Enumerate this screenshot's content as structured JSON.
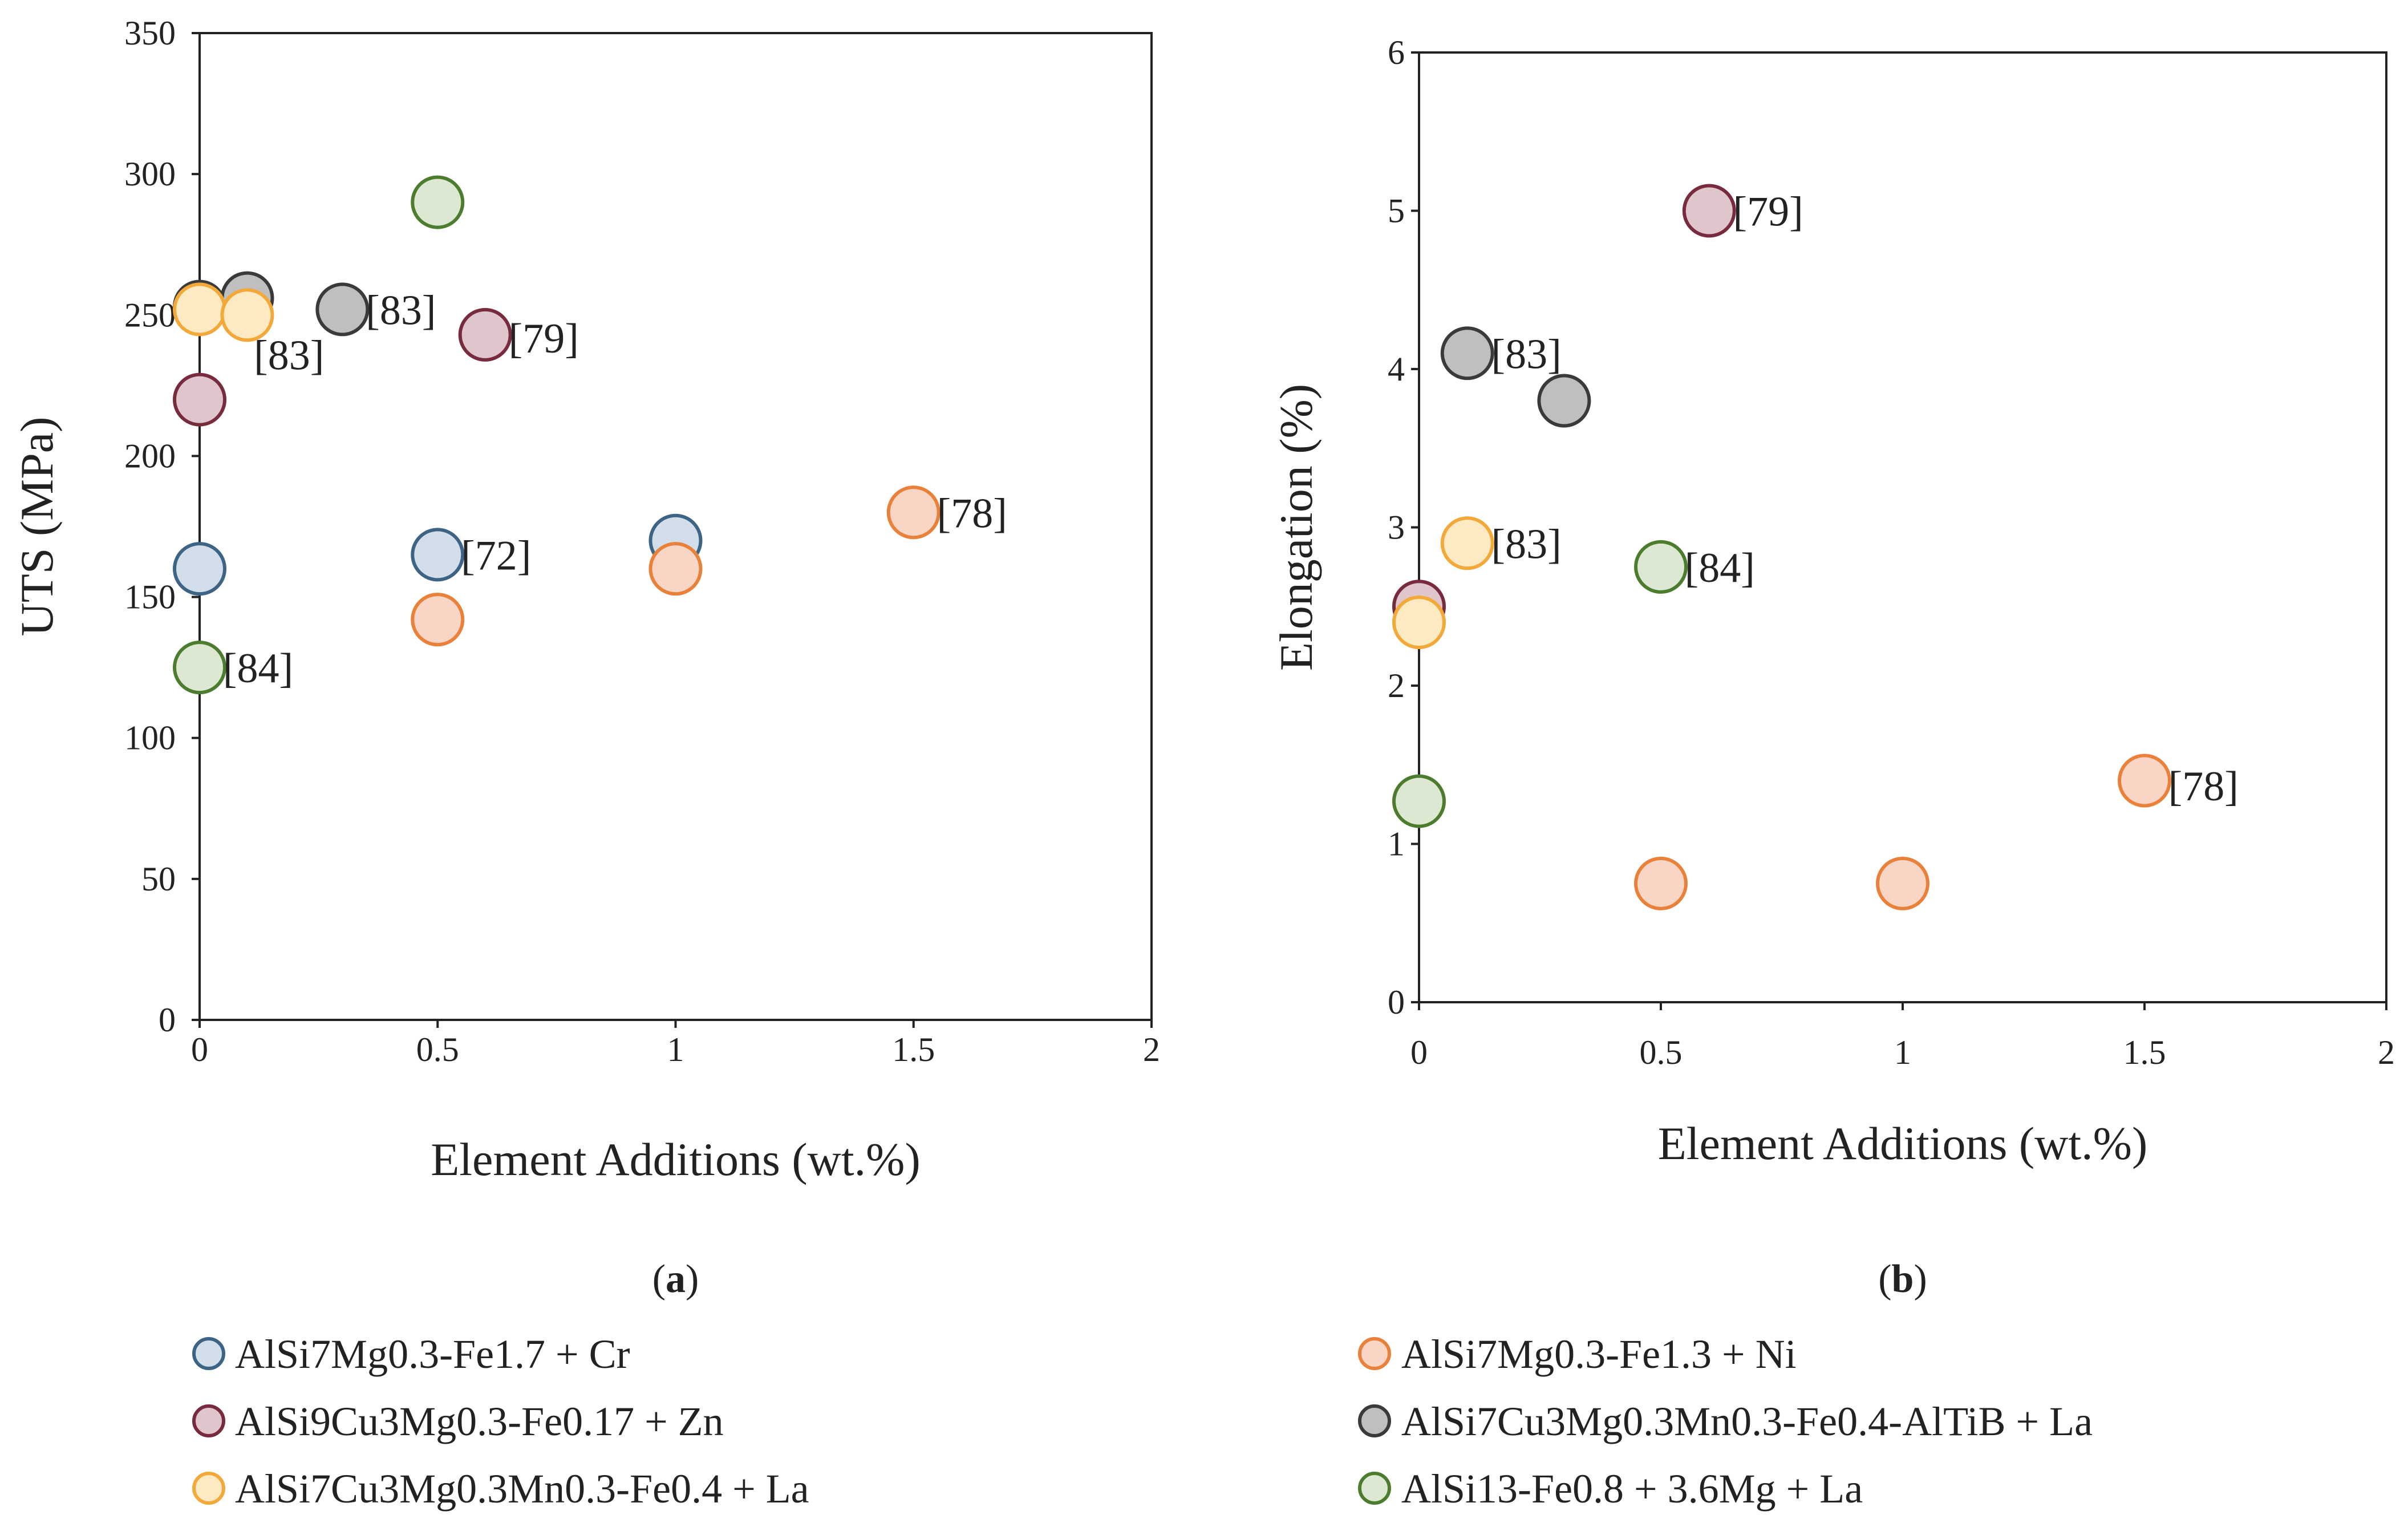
{
  "series_styles": [
    {
      "name": "AlSi7Mg0.3-Fe1.7 + Cr",
      "fill": "#d2dee9",
      "stroke": "#3d6485"
    },
    {
      "name": "AlSi7Mg0.3-Fe1.3 + Ni",
      "fill": "#f8d5c5",
      "stroke": "#e9813b"
    },
    {
      "name": "AlSi9Cu3Mg0.3-Fe0.17 + Zn",
      "fill": "#dfc6cc",
      "stroke": "#772b3d"
    },
    {
      "name": "AlSi7Cu3Mg0.3Mn0.3-Fe0.4-AlTiB + La",
      "fill": "#bfbfbf",
      "stroke": "#3a3a3a"
    },
    {
      "name": "AlSi7Cu3Mg0.3Mn0.3-Fe0.4 + La",
      "fill": "#fde9c2",
      "stroke": "#f2a93a"
    },
    {
      "name": "AlSi13-Fe0.8 + 3.6Mg + La",
      "fill": "#dde8d2",
      "stroke": "#4c7d2f"
    }
  ],
  "legend": {
    "left": [
      "AlSi7Mg0.3-Fe1.7 + Cr",
      "AlSi9Cu3Mg0.3-Fe0.17 + Zn",
      "AlSi7Cu3Mg0.3Mn0.3-Fe0.4 + La"
    ],
    "right": [
      "AlSi7Mg0.3-Fe1.3 + Ni",
      "AlSi7Cu3Mg0.3Mn0.3-Fe0.4-AlTiB + La",
      "AlSi13-Fe0.8 + 3.6Mg + La"
    ]
  },
  "chart_data": [
    {
      "type": "scatter",
      "panel_label": "a",
      "xlabel": "Element Additions (wt.%)",
      "ylabel": "UTS (MPa)",
      "xlim": [
        0,
        2
      ],
      "ylim": [
        0,
        350
      ],
      "xticks": [
        "0",
        "0.5",
        "1",
        "1.5",
        "2"
      ],
      "yticks": [
        "0",
        "50",
        "100",
        "150",
        "200",
        "250",
        "300",
        "350"
      ],
      "series": [
        {
          "name": "AlSi7Mg0.3-Fe1.7 + Cr",
          "x": [
            0,
            0.5,
            1
          ],
          "y": [
            160,
            165,
            170
          ]
        },
        {
          "name": "AlSi7Mg0.3-Fe1.3 + Ni",
          "x": [
            0.5,
            1,
            1.5
          ],
          "y": [
            142,
            160,
            180
          ]
        },
        {
          "name": "AlSi9Cu3Mg0.3-Fe0.17 + Zn",
          "x": [
            0,
            0.6
          ],
          "y": [
            220,
            243
          ]
        },
        {
          "name": "AlSi7Cu3Mg0.3Mn0.3-Fe0.4-AlTiB + La",
          "x": [
            0,
            0.1,
            0.3
          ],
          "y": [
            253,
            256,
            252
          ]
        },
        {
          "name": "AlSi7Cu3Mg0.3Mn0.3-Fe0.4 + La",
          "x": [
            0,
            0.1
          ],
          "y": [
            252,
            250
          ]
        },
        {
          "name": "AlSi13-Fe0.8 + 3.6Mg + La",
          "x": [
            0,
            0.5
          ],
          "y": [
            125,
            290
          ]
        }
      ],
      "annotations": [
        {
          "text": "[72]",
          "x": 0.5,
          "y": 165,
          "dx": 0.055,
          "dy": 0
        },
        {
          "text": "[78]",
          "x": 1.5,
          "y": 180,
          "dx": 0.055,
          "dy": 0
        },
        {
          "text": "[79]",
          "x": 0.6,
          "y": 243,
          "dx": 0.055,
          "dy": -1
        },
        {
          "text": "[83]",
          "x": 0.3,
          "y": 252,
          "dx": 0.055,
          "dy": 0
        },
        {
          "text": "[83]",
          "x": 0.1,
          "y": 250,
          "dx": 0.02,
          "dy": -14
        },
        {
          "text": "[84]",
          "x": 0,
          "y": 125,
          "dx": 0.055,
          "dy": 0
        }
      ]
    },
    {
      "type": "scatter",
      "panel_label": "b",
      "xlabel": "Element Additions (wt.%)",
      "ylabel": "Elongation (%)",
      "xlim": [
        0,
        2
      ],
      "ylim": [
        0,
        6
      ],
      "xticks": [
        "0",
        "0.5",
        "1",
        "1.5",
        "2"
      ],
      "yticks": [
        "0",
        "1",
        "2",
        "3",
        "4",
        "5",
        "6"
      ],
      "series": [
        {
          "name": "AlSi7Mg0.3-Fe1.3 + Ni",
          "x": [
            0.5,
            1,
            1.5
          ],
          "y": [
            0.75,
            0.75,
            1.4
          ]
        },
        {
          "name": "AlSi9Cu3Mg0.3-Fe0.17 + Zn",
          "x": [
            0,
            0.6
          ],
          "y": [
            2.5,
            5.0
          ]
        },
        {
          "name": "AlSi7Cu3Mg0.3Mn0.3-Fe0.4-AlTiB + La",
          "x": [
            0.1,
            0.3
          ],
          "y": [
            4.1,
            3.8
          ]
        },
        {
          "name": "AlSi7Cu3Mg0.3Mn0.3-Fe0.4 + La",
          "x": [
            0,
            0.1
          ],
          "y": [
            2.4,
            2.9
          ]
        },
        {
          "name": "AlSi13-Fe0.8 + 3.6Mg + La",
          "x": [
            0,
            0.5
          ],
          "y": [
            1.27,
            2.75
          ]
        }
      ],
      "annotations": [
        {
          "text": "[79]",
          "x": 0.6,
          "y": 5.0,
          "dx": 0.055,
          "dy": 0
        },
        {
          "text": "[83]",
          "x": 0.1,
          "y": 4.1,
          "dx": 0.055,
          "dy": 0
        },
        {
          "text": "[83]",
          "x": 0.1,
          "y": 2.9,
          "dx": 0.055,
          "dy": 0
        },
        {
          "text": "[84]",
          "x": 0.5,
          "y": 2.75,
          "dx": 0.055,
          "dy": 0
        },
        {
          "text": "[78]",
          "x": 1.5,
          "y": 1.4,
          "dx": 0.055,
          "dy": -0.03
        }
      ]
    }
  ]
}
